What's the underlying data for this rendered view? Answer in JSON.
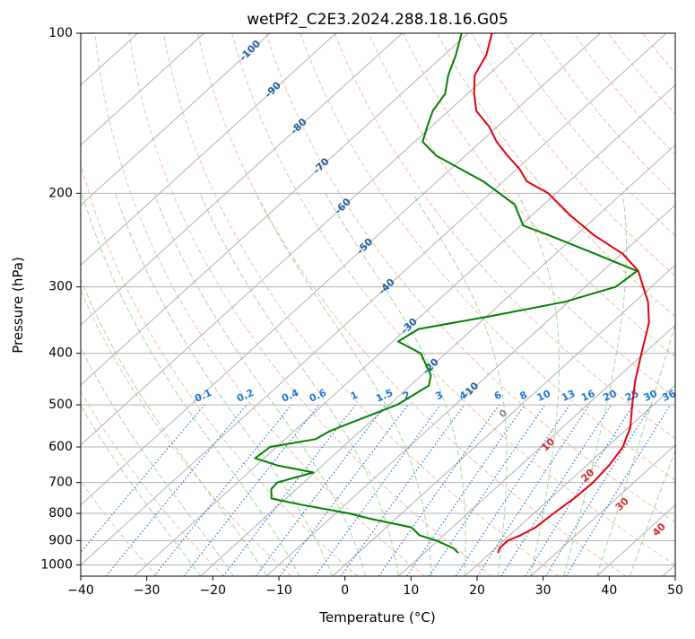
{
  "chart_data": {
    "type": "line",
    "title": "wetPf2_C2E3.2024.288.18.16.G05",
    "xlabel": "Temperature (°C)",
    "ylabel": "Pressure (hPa)",
    "xlim": [
      -40,
      50
    ],
    "ylim": [
      1050,
      100
    ],
    "y_scale": "log",
    "grid": true,
    "x_ticks": [
      "−40",
      "−30",
      "−20",
      "−10",
      "0",
      "10",
      "20",
      "30",
      "40",
      "50"
    ],
    "x_tick_values": [
      -40,
      -30,
      -20,
      -10,
      0,
      10,
      20,
      30,
      40,
      50
    ],
    "y_ticks": [
      "100",
      "200",
      "300",
      "400",
      "500",
      "600",
      "700",
      "800",
      "900",
      "1000"
    ],
    "y_tick_values": [
      100,
      200,
      300,
      400,
      500,
      600,
      700,
      800,
      900,
      1000
    ],
    "series": [
      {
        "color": "#e0000f",
        "points": [
          {
            "p": 950,
            "t": 21.2
          },
          {
            "p": 930,
            "t": 20.6
          },
          {
            "p": 900,
            "t": 20.6
          },
          {
            "p": 880,
            "t": 21.6
          },
          {
            "p": 850,
            "t": 22.6
          },
          {
            "p": 800,
            "t": 23.0
          },
          {
            "p": 750,
            "t": 23.6
          },
          {
            "p": 700,
            "t": 23.8
          },
          {
            "p": 650,
            "t": 23.4
          },
          {
            "p": 600,
            "t": 22.4
          },
          {
            "p": 550,
            "t": 20.2
          },
          {
            "p": 500,
            "t": 16.8
          },
          {
            "p": 450,
            "t": 13.2
          },
          {
            "p": 400,
            "t": 9.6
          },
          {
            "p": 350,
            "t": 5.6
          },
          {
            "p": 320,
            "t": 2.0
          },
          {
            "p": 300,
            "t": -1.2
          },
          {
            "p": 280,
            "t": -4.6
          },
          {
            "p": 260,
            "t": -9.8
          },
          {
            "p": 240,
            "t": -17.2
          },
          {
            "p": 220,
            "t": -24.2
          },
          {
            "p": 200,
            "t": -31.2
          },
          {
            "p": 190,
            "t": -36.4
          },
          {
            "p": 180,
            "t": -39.6
          },
          {
            "p": 170,
            "t": -43.6
          },
          {
            "p": 160,
            "t": -47.6
          },
          {
            "p": 150,
            "t": -51.2
          },
          {
            "p": 140,
            "t": -55.8
          },
          {
            "p": 130,
            "t": -59.0
          },
          {
            "p": 120,
            "t": -62.0
          },
          {
            "p": 110,
            "t": -63.6
          },
          {
            "p": 100,
            "t": -66.4
          }
        ]
      },
      {
        "color": "#008000",
        "points": [
          {
            "p": 950,
            "t": 15.2
          },
          {
            "p": 930,
            "t": 13.6
          },
          {
            "p": 900,
            "t": 9.8
          },
          {
            "p": 880,
            "t": 6.4
          },
          {
            "p": 850,
            "t": 3.8
          },
          {
            "p": 820,
            "t": -3.6
          },
          {
            "p": 800,
            "t": -8.0
          },
          {
            "p": 770,
            "t": -16.8
          },
          {
            "p": 750,
            "t": -22.2
          },
          {
            "p": 720,
            "t": -23.8
          },
          {
            "p": 700,
            "t": -24.0
          },
          {
            "p": 670,
            "t": -20.2
          },
          {
            "p": 650,
            "t": -26.8
          },
          {
            "p": 630,
            "t": -31.4
          },
          {
            "p": 600,
            "t": -31.0
          },
          {
            "p": 580,
            "t": -25.4
          },
          {
            "p": 560,
            "t": -24.6
          },
          {
            "p": 540,
            "t": -22.8
          },
          {
            "p": 500,
            "t": -18.8
          },
          {
            "p": 460,
            "t": -17.2
          },
          {
            "p": 440,
            "t": -18.6
          },
          {
            "p": 400,
            "t": -23.8
          },
          {
            "p": 380,
            "t": -29.2
          },
          {
            "p": 360,
            "t": -28.2
          },
          {
            "p": 340,
            "t": -19.2
          },
          {
            "p": 320,
            "t": -10.6
          },
          {
            "p": 300,
            "t": -5.4
          },
          {
            "p": 280,
            "t": -4.8
          },
          {
            "p": 260,
            "t": -14.0
          },
          {
            "p": 240,
            "t": -24.0
          },
          {
            "p": 230,
            "t": -29.6
          },
          {
            "p": 210,
            "t": -34.4
          },
          {
            "p": 190,
            "t": -43.0
          },
          {
            "p": 170,
            "t": -54.4
          },
          {
            "p": 160,
            "t": -58.8
          },
          {
            "p": 150,
            "t": -60.6
          },
          {
            "p": 140,
            "t": -62.4
          },
          {
            "p": 130,
            "t": -63.4
          },
          {
            "p": 120,
            "t": -66.0
          },
          {
            "p": 110,
            "t": -68.2
          },
          {
            "p": 100,
            "t": -71.0
          }
        ]
      }
    ],
    "mixing_ratio_labels": [
      "0.1",
      "0.2",
      "0.4",
      "0.6",
      "1",
      "1.5",
      "2",
      "3",
      "4",
      "6",
      "8",
      "10",
      "13",
      "16",
      "20",
      "25",
      "30",
      "36"
    ],
    "mixing_ratio_values": [
      0.1,
      0.2,
      0.4,
      0.6,
      1,
      1.5,
      2,
      3,
      4,
      6,
      8,
      10,
      13,
      16,
      20,
      25,
      30,
      36
    ],
    "isotherm_labels": [
      "-100",
      "-90",
      "-80",
      "-70",
      "-60",
      "-50",
      "-40",
      "-30",
      "-20",
      "-10"
    ],
    "isotherm_values": [
      -100,
      -90,
      -80,
      -70,
      -60,
      -50,
      -40,
      -30,
      -20,
      -10
    ],
    "moist_adiabat_labels": [
      "0",
      "10",
      "20",
      "30",
      "40"
    ],
    "moist_adiabat_values": [
      0,
      10,
      20,
      30,
      40
    ],
    "colors": {
      "temperature": "#e0000f",
      "dewpoint": "#008000",
      "dry_adiabat": "#f4a582",
      "moist_adiabat": "#8fc98f",
      "mixing_ratio": "#1f77d4",
      "isotherm_label": "#1f5f9f",
      "moist_label": "#d62728",
      "zero_label": "#888888",
      "grid": "#b0b0b0"
    }
  }
}
